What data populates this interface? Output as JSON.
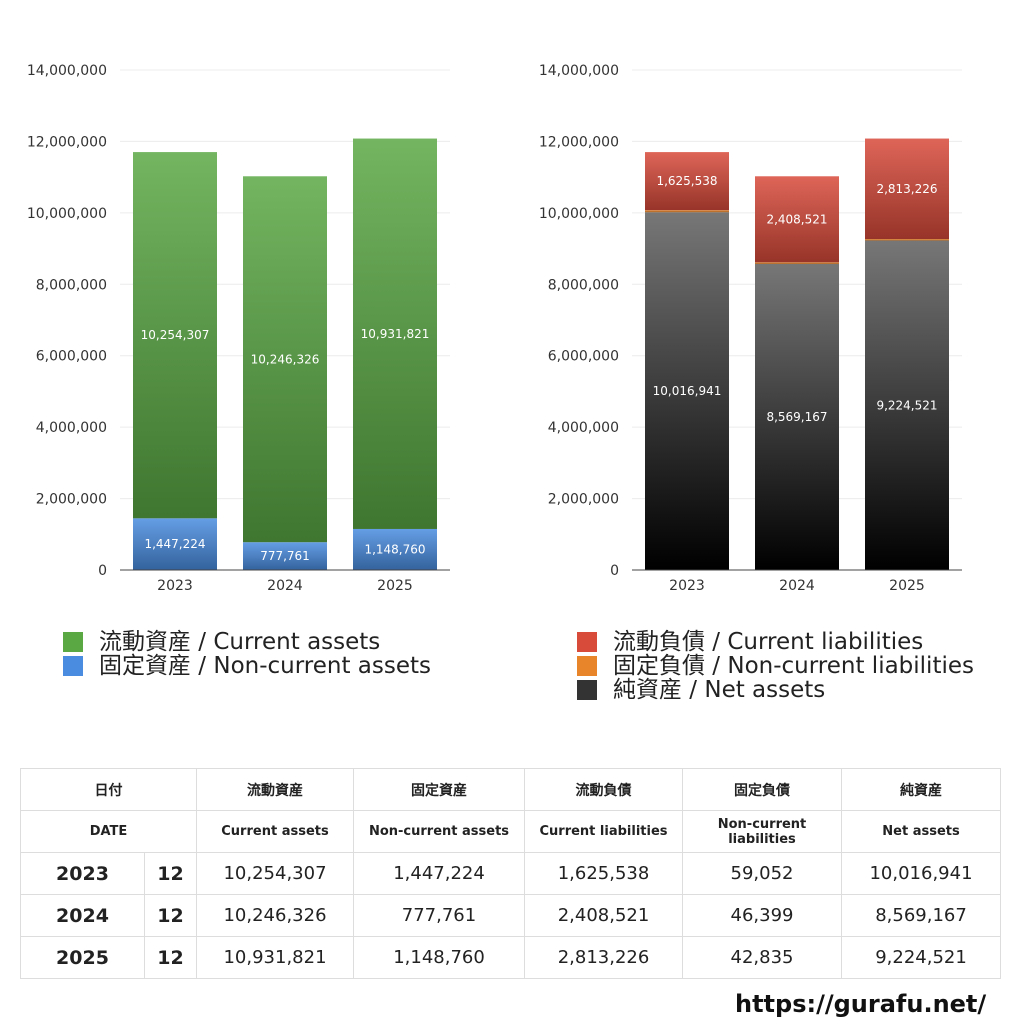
{
  "chart_data": [
    {
      "type": "bar",
      "stacked": true,
      "categories": [
        "2023",
        "2024",
        "2025"
      ],
      "ylim": [
        0,
        14000000
      ],
      "yticks": [
        "0",
        "2,000,000",
        "4,000,000",
        "6,000,000",
        "8,000,000",
        "10,000,000",
        "12,000,000",
        "14,000,000"
      ],
      "series": [
        {
          "name": "固定資産 / Non-current assets",
          "values": [
            1447224,
            777761,
            1148760
          ],
          "labels": [
            "1,447,224",
            "777,761",
            "1,148,760"
          ],
          "color": "#4a8de0"
        },
        {
          "name": "流動資産 / Current assets",
          "values": [
            10254307,
            10246326,
            10931821
          ],
          "labels": [
            "10,254,307",
            "10,246,326",
            "10,931,821"
          ],
          "color": "#5aa844"
        }
      ]
    },
    {
      "type": "bar",
      "stacked": true,
      "categories": [
        "2023",
        "2024",
        "2025"
      ],
      "ylim": [
        0,
        14000000
      ],
      "yticks": [
        "0",
        "2,000,000",
        "4,000,000",
        "6,000,000",
        "8,000,000",
        "10,000,000",
        "12,000,000",
        "14,000,000"
      ],
      "series": [
        {
          "name": "純資産 / Net assets",
          "values": [
            10016941,
            8569167,
            9224521
          ],
          "labels": [
            "10,016,941",
            "8,569,167",
            "9,224,521"
          ],
          "color": "#3a3a3a"
        },
        {
          "name": "固定負債 / Non-current liabilities",
          "values": [
            59052,
            46399,
            42835
          ],
          "labels": [
            "59,052",
            "46,399",
            "42,835"
          ],
          "color": "#e8852a"
        },
        {
          "name": "流動負債 / Current liabilities",
          "values": [
            1625538,
            2408521,
            2813226
          ],
          "labels": [
            "1,625,538",
            "2,408,521",
            "2,813,226"
          ],
          "color": "#d84a3a"
        }
      ]
    }
  ],
  "legend_left": [
    {
      "label": "流動資産 / Current assets",
      "color": "#5aa844"
    },
    {
      "label": "固定資産 / Non-current assets",
      "color": "#4a8de0"
    }
  ],
  "legend_right": [
    {
      "label": "流動負債 / Current liabilities",
      "color": "#d84a3a"
    },
    {
      "label": "固定負債 / Non-current liabilities",
      "color": "#e8852a"
    },
    {
      "label": "純資産 / Net assets",
      "color": "#333333"
    }
  ],
  "table": {
    "header_jp": [
      "日付",
      "流動資産",
      "固定資産",
      "流動負債",
      "固定負債",
      "純資産"
    ],
    "header_en": [
      "DATE",
      "Current assets",
      "Non-current assets",
      "Current liabilities",
      "Non-current liabilities",
      "Net assets"
    ],
    "rows": [
      {
        "year": "2023",
        "month": "12",
        "cells": [
          "10,254,307",
          "1,447,224",
          "1,625,538",
          "59,052",
          "10,016,941"
        ]
      },
      {
        "year": "2024",
        "month": "12",
        "cells": [
          "10,246,326",
          "777,761",
          "2,408,521",
          "46,399",
          "8,569,167"
        ]
      },
      {
        "year": "2025",
        "month": "12",
        "cells": [
          "10,931,821",
          "1,148,760",
          "2,813,226",
          "42,835",
          "9,224,521"
        ]
      }
    ]
  },
  "site": "https://gurafu.net/"
}
